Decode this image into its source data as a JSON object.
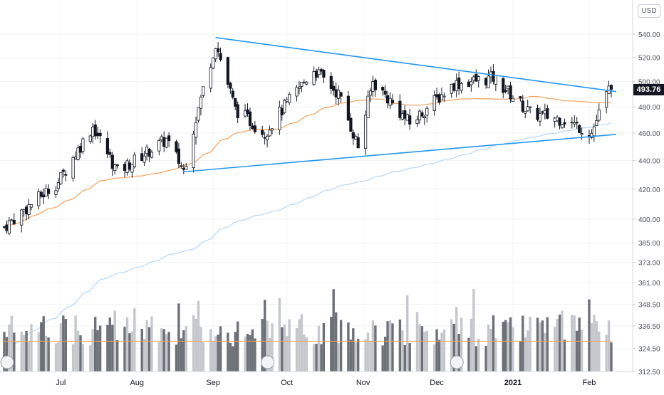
{
  "chart_data": {
    "type": "candlestick",
    "currency": "USD",
    "last_price": "493.76",
    "y_ticks": [
      "540.00",
      "520.00",
      "500.00",
      "480.00",
      "460.00",
      "440.00",
      "420.00",
      "400.00",
      "385.00",
      "373.00",
      "361.00",
      "348.50",
      "336.50",
      "324.50",
      "312.50"
    ],
    "y_scale": "log",
    "x_ticks": [
      "Jul",
      "Aug",
      "Sep",
      "Oct",
      "Nov",
      "Dec",
      "2021",
      "Feb"
    ],
    "x_range": [
      "2020-06-08",
      "2021-02-10"
    ],
    "price_range": [
      385,
      540
    ],
    "grid": true,
    "ohlc_sample": [
      {
        "date": "2020-06-08",
        "close": 395
      },
      {
        "date": "2020-06-30",
        "close": 425
      },
      {
        "date": "2020-07-14",
        "close": 465
      },
      {
        "date": "2020-07-24",
        "close": 432
      },
      {
        "date": "2020-08-13",
        "close": 455
      },
      {
        "date": "2020-08-20",
        "close": 433
      },
      {
        "date": "2020-09-02",
        "close": 532
      },
      {
        "date": "2020-09-10",
        "close": 478
      },
      {
        "date": "2020-09-22",
        "close": 460
      },
      {
        "date": "2020-10-12",
        "close": 510
      },
      {
        "date": "2020-10-22",
        "close": 490
      },
      {
        "date": "2020-10-30",
        "close": 450
      },
      {
        "date": "2020-11-05",
        "close": 500
      },
      {
        "date": "2020-11-20",
        "close": 467
      },
      {
        "date": "2020-12-08",
        "close": 498
      },
      {
        "date": "2020-12-24",
        "close": 503
      },
      {
        "date": "2021-01-08",
        "close": 475
      },
      {
        "date": "2021-01-22",
        "close": 470
      },
      {
        "date": "2021-02-02",
        "close": 460
      },
      {
        "date": "2021-02-09",
        "close": 493.76
      }
    ],
    "trendlines": [
      {
        "name": "upper",
        "from": {
          "date": "2020-09-02",
          "price": 537
        },
        "to": {
          "date": "2021-02-12",
          "price": 492
        }
      },
      {
        "name": "lower",
        "from": {
          "date": "2020-08-20",
          "price": 432
        },
        "to": {
          "date": "2021-02-12",
          "price": 459
        }
      }
    ],
    "moving_averages": [
      {
        "period": 50,
        "color": "#f5a15b"
      },
      {
        "period": 200,
        "color": "#b7d7f5"
      }
    ],
    "volume_ma_color": "#f5a15b",
    "colors": {
      "up": "#ffffff",
      "down": "#131722",
      "outline": "#131722",
      "trend": "#2196f3",
      "vol_up": "#c5c7cc",
      "vol_down": "#6e7078"
    }
  }
}
